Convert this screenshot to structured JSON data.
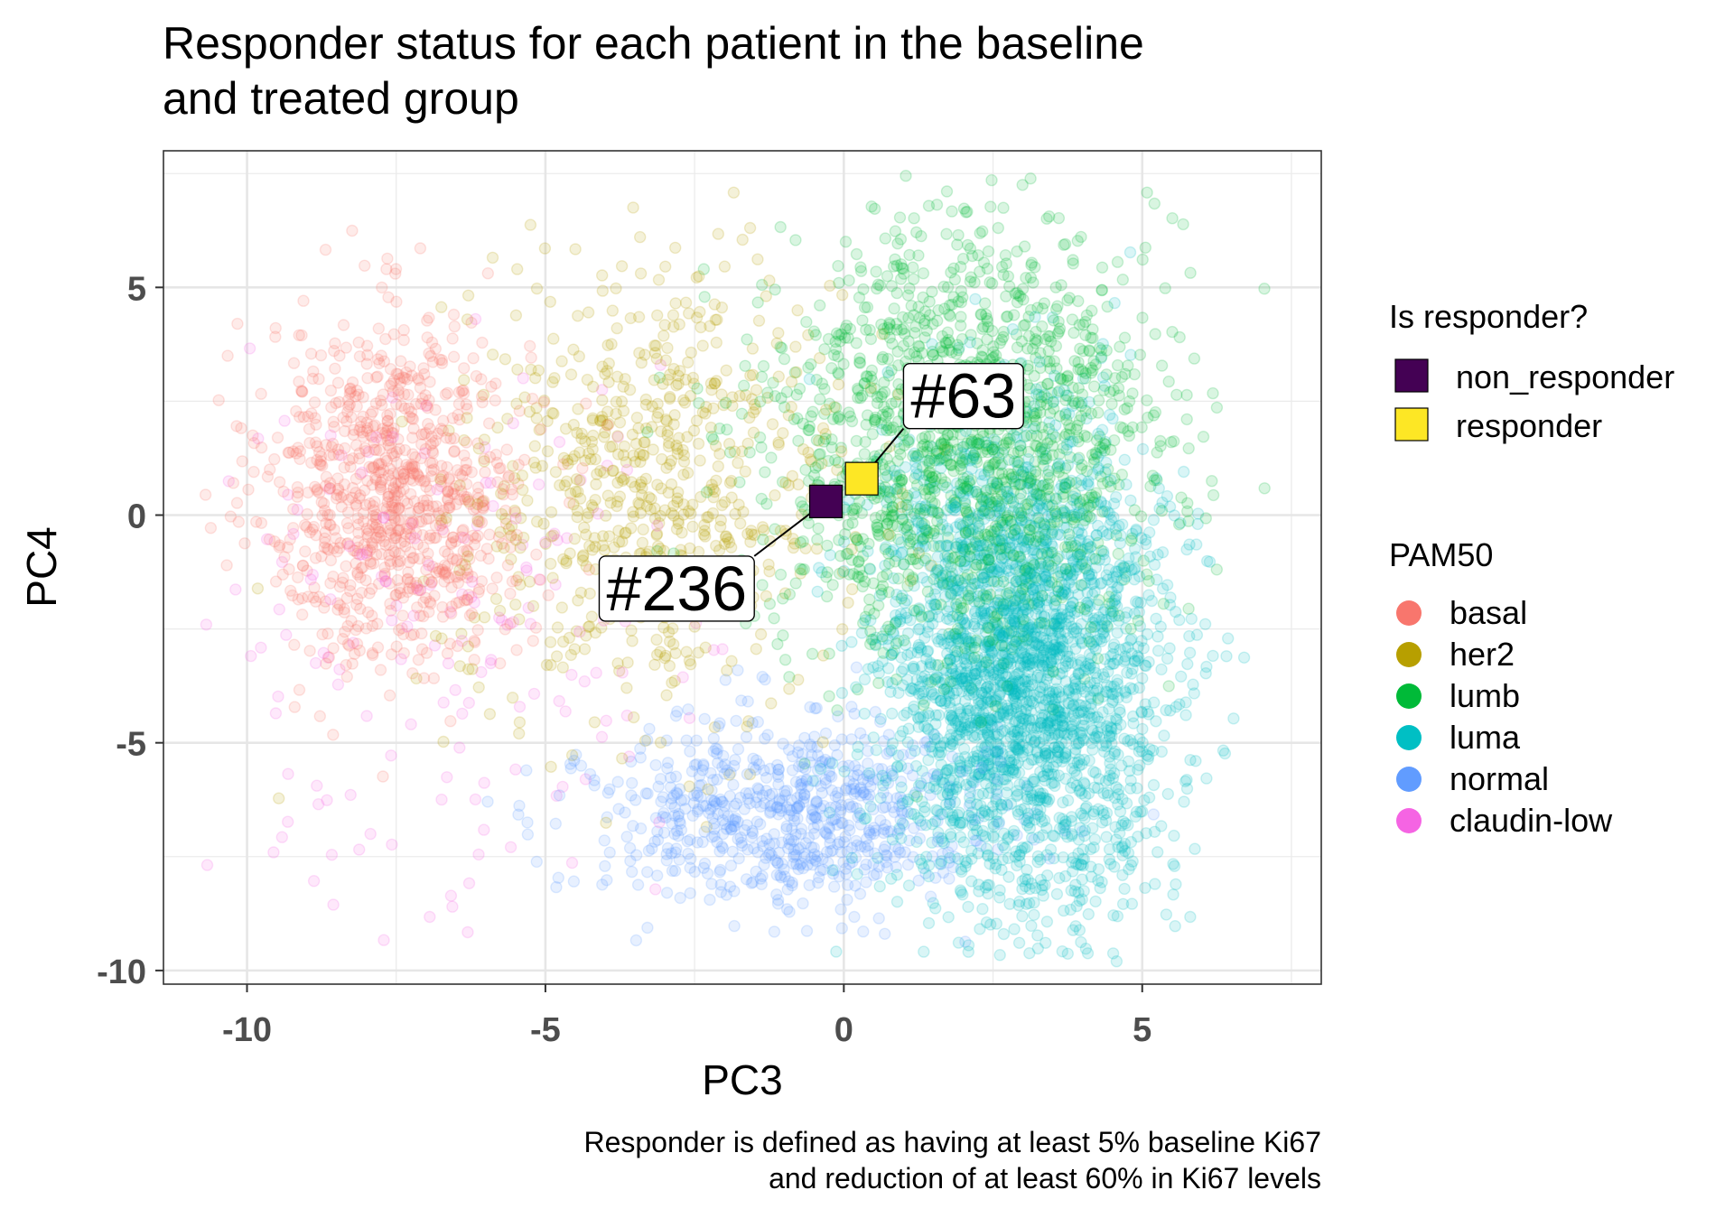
{
  "chart_data": {
    "type": "scatter",
    "title_lines": [
      "Responder status for each patient in the baseline",
      "and treated group"
    ],
    "xlabel": "PC3",
    "ylabel": "PC4",
    "xlim": [
      -11.4,
      8.0
    ],
    "ylim": [
      -10.3,
      8.0
    ],
    "x_ticks": [
      {
        "value": -10,
        "label": "-10"
      },
      {
        "value": -5,
        "label": "-5"
      },
      {
        "value": 0,
        "label": "0"
      },
      {
        "value": 5,
        "label": "5"
      }
    ],
    "y_ticks": [
      {
        "value": 5,
        "label": "5"
      },
      {
        "value": 0,
        "label": "0"
      },
      {
        "value": -5,
        "label": "-5"
      },
      {
        "value": -10,
        "label": "-10"
      }
    ],
    "x_minor_grid": [
      -7.5,
      -2.5,
      2.5,
      7.5
    ],
    "y_minor_grid": [
      7.5,
      2.5,
      -2.5,
      -7.5
    ],
    "grid": true,
    "background_points": {
      "alpha": 0.15,
      "groups": [
        {
          "name": "basal",
          "color": "#F8766D",
          "approx_n": 900,
          "center": [
            -7.5,
            0.5
          ],
          "spread": [
            1.1,
            1.9
          ]
        },
        {
          "name": "her2",
          "color": "#B79F00",
          "approx_n": 700,
          "center": [
            -3.2,
            0.5
          ],
          "spread": [
            1.6,
            2.4
          ]
        },
        {
          "name": "lumb",
          "color": "#00BA38",
          "approx_n": 1600,
          "center": [
            2.0,
            1.6
          ],
          "spread": [
            1.6,
            2.4
          ]
        },
        {
          "name": "luma",
          "color": "#00BFC4",
          "approx_n": 2600,
          "center": [
            3.0,
            -3.4
          ],
          "spread": [
            1.2,
            2.6
          ]
        },
        {
          "name": "normal",
          "color": "#619CFF",
          "approx_n": 700,
          "center": [
            -1.0,
            -6.6
          ],
          "spread": [
            1.7,
            1.0
          ]
        },
        {
          "name": "claudin-low",
          "color": "#F564E3",
          "approx_n": 180,
          "center": [
            -6.5,
            -3.0
          ],
          "spread": [
            2.2,
            3.0
          ]
        }
      ]
    },
    "highlighted_points": [
      {
        "id": "#63",
        "x": 0.3,
        "y": 0.8,
        "status": "responder",
        "color": "#FDE725",
        "label_x": 1.0,
        "label_y": 1.9
      },
      {
        "id": "#236",
        "x": -0.3,
        "y": 0.3,
        "status": "non_responder",
        "color": "#440154",
        "label_x": -1.5,
        "label_y": -0.9
      }
    ],
    "legend_responder": {
      "title": "Is responder?",
      "entries": [
        {
          "label": "non_responder",
          "color": "#440154"
        },
        {
          "label": "responder",
          "color": "#FDE725"
        }
      ]
    },
    "legend_pam50": {
      "title": "PAM50",
      "entries": [
        {
          "label": "basal",
          "color": "#F8766D"
        },
        {
          "label": "her2",
          "color": "#B79F00"
        },
        {
          "label": "lumb",
          "color": "#00BA38"
        },
        {
          "label": "luma",
          "color": "#00BFC4"
        },
        {
          "label": "normal",
          "color": "#619CFF"
        },
        {
          "label": "claudin-low",
          "color": "#F564E3"
        }
      ]
    },
    "caption_lines": [
      "Responder is defined as having at least 5% baseline Ki67",
      "and reduction of at least 60% in Ki67 levels"
    ]
  }
}
